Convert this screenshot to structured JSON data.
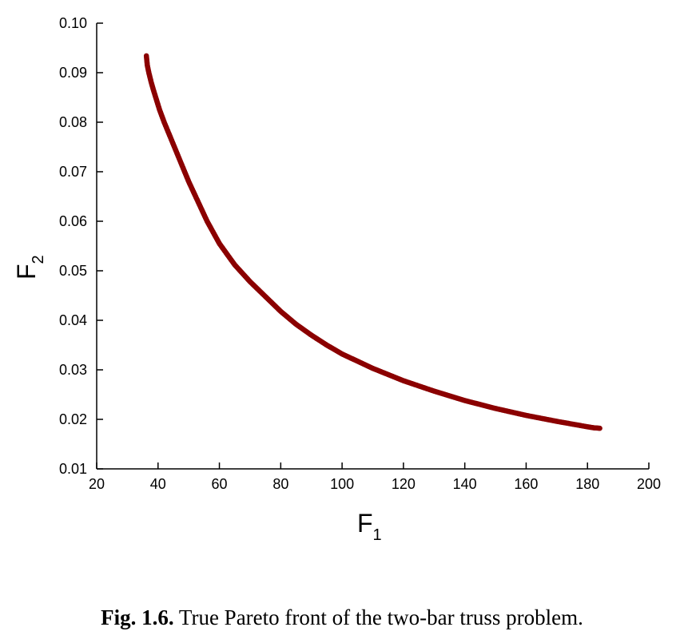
{
  "chart_data": {
    "type": "scatter",
    "xlabel": "F",
    "xlabel_sub": "1",
    "ylabel": "F",
    "ylabel_sub": "2",
    "xlim": [
      20,
      200
    ],
    "ylim": [
      0.01,
      0.1
    ],
    "xticks": [
      "20",
      "40",
      "60",
      "80",
      "100",
      "120",
      "140",
      "160",
      "180",
      "200"
    ],
    "yticks": [
      "0.01",
      "0.02",
      "0.03",
      "0.04",
      "0.05",
      "0.06",
      "0.07",
      "0.08",
      "0.09",
      "0.10"
    ],
    "grid": false,
    "point_color": "#8b0000",
    "points": [
      [
        36.2,
        0.0934
      ],
      [
        36.5,
        0.0915
      ],
      [
        37.0,
        0.09
      ],
      [
        37.8,
        0.088
      ],
      [
        38.5,
        0.0865
      ],
      [
        39.5,
        0.0845
      ],
      [
        40.5,
        0.0825
      ],
      [
        42.0,
        0.08
      ],
      [
        44.0,
        0.077
      ],
      [
        46.0,
        0.074
      ],
      [
        48.0,
        0.071
      ],
      [
        50.0,
        0.068
      ],
      [
        53.0,
        0.064
      ],
      [
        56.0,
        0.06
      ],
      [
        60.0,
        0.0555
      ],
      [
        65.0,
        0.0512
      ],
      [
        70.0,
        0.0478
      ],
      [
        75.0,
        0.0448
      ],
      [
        80.0,
        0.0418
      ],
      [
        85.0,
        0.0392
      ],
      [
        90.0,
        0.037
      ],
      [
        95.0,
        0.035
      ],
      [
        100.0,
        0.0332
      ],
      [
        110.0,
        0.0303
      ],
      [
        120.0,
        0.0278
      ],
      [
        130.0,
        0.0257
      ],
      [
        140.0,
        0.0238
      ],
      [
        150.0,
        0.0222
      ],
      [
        160.0,
        0.0208
      ],
      [
        170.0,
        0.0196
      ],
      [
        180.0,
        0.0185
      ],
      [
        182.0,
        0.0183
      ],
      [
        184.0,
        0.0182
      ]
    ]
  },
  "caption": {
    "label": "Fig. 1.6.",
    "text": " True Pareto front of the two-bar truss problem."
  }
}
